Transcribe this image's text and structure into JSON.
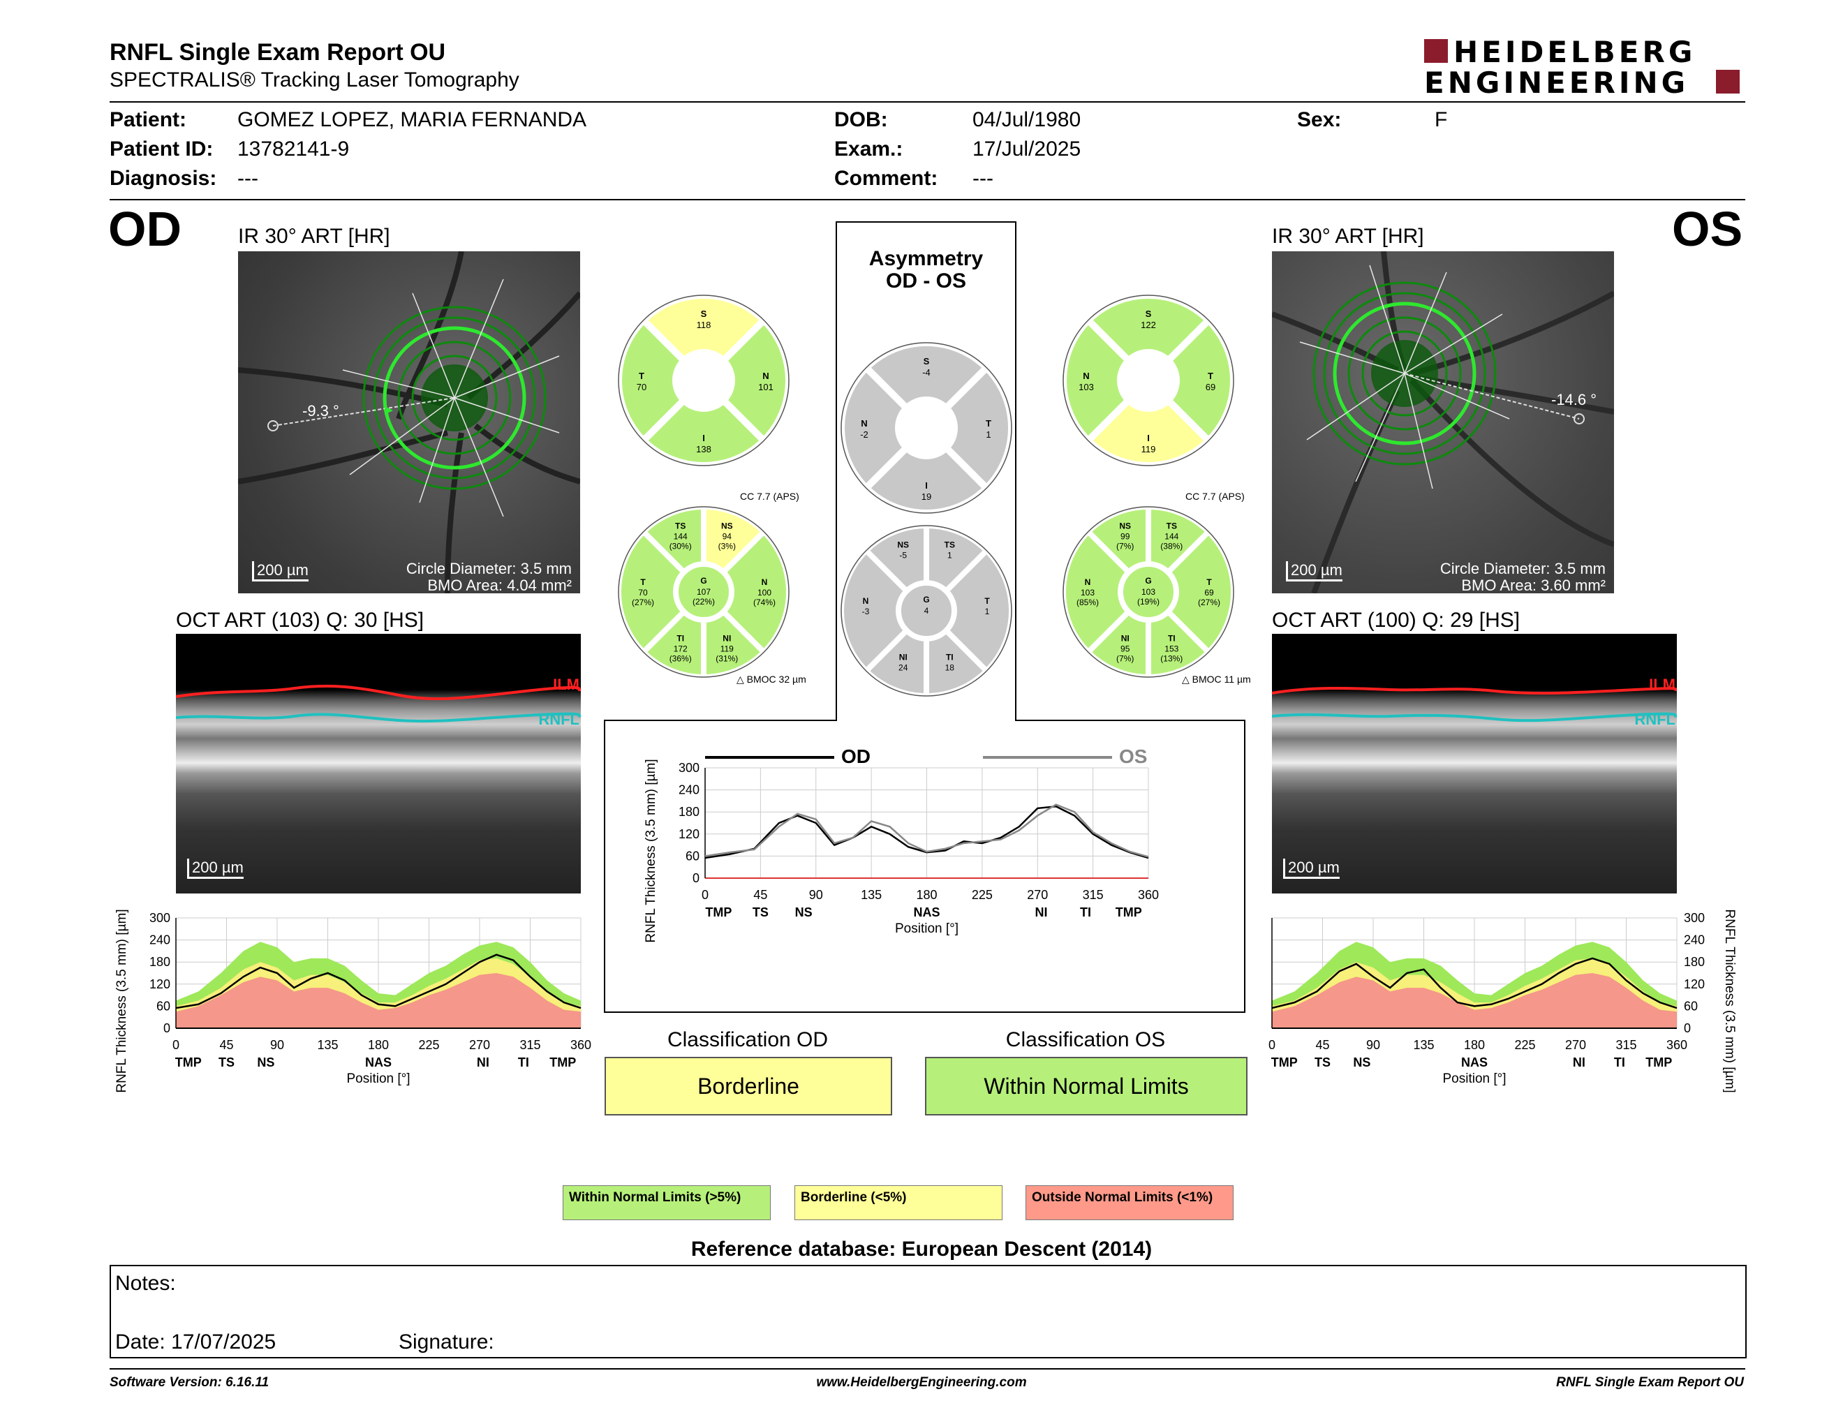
{
  "header": {
    "title": "RNFL Single Exam Report OU",
    "subtitle": "SPECTRALIS® Tracking Laser Tomography",
    "logo_line1": "HEIDELBERG",
    "logo_line2": "ENGINEERING"
  },
  "patient": {
    "patient_label": "Patient:",
    "patient_value": "GOMEZ LOPEZ, MARIA FERNANDA",
    "id_label": "Patient ID:",
    "id_value": "13782141-9",
    "diag_label": "Diagnosis:",
    "diag_value": "---",
    "dob_label": "DOB:",
    "dob_value": "04/Jul/1980",
    "exam_label": "Exam.:",
    "exam_value": "17/Jul/2025",
    "comment_label": "Comment:",
    "comment_value": "---",
    "sex_label": "Sex:",
    "sex_value": "F"
  },
  "od": {
    "eye": "OD",
    "ir_title": "IR 30° ART [HR]",
    "angle": "-9.3 °",
    "scale": "200 µm",
    "circle_diameter": "Circle Diameter: 3.5 mm",
    "bmo_area": "BMO Area: 4.04 mm²",
    "oct_title": "OCT ART (103) Q: 30 [HS]",
    "ilm": "ILM",
    "rnfl": "RNFL",
    "cc": "CC 7.7 (APS)",
    "bmoc": "BMOC 32 µm"
  },
  "os": {
    "eye": "OS",
    "ir_title": "IR 30° ART [HR]",
    "angle": "-14.6 °",
    "scale": "200 µm",
    "circle_diameter": "Circle Diameter: 3.5 mm",
    "bmo_area": "BMO Area: 3.60 mm²",
    "oct_title": "OCT ART (100) Q: 29 [HS]",
    "ilm": "ILM",
    "rnfl": "RNFL",
    "cc": "CC 7.7 (APS)",
    "bmoc": "BMOC 11 µm"
  },
  "asymmetry": {
    "title1": "Asymmetry",
    "title2": "OD - OS",
    "legend_od": "OD",
    "legend_os": "OS"
  },
  "sectors": {
    "od_quad": {
      "S": "118",
      "N": "101",
      "I": "138",
      "T": "70"
    },
    "os_quad": {
      "S": "122",
      "N": "103",
      "I": "119",
      "T": "69"
    },
    "asym_quad": {
      "S": "-4",
      "N": "-2",
      "I": "19",
      "T": "1"
    },
    "od_six": {
      "TS": [
        "144",
        "(30%)"
      ],
      "NS": [
        "94",
        "(3%)"
      ],
      "T": [
        "70",
        "(27%)"
      ],
      "G": [
        "107",
        "(22%)"
      ],
      "N": [
        "100",
        "(74%)"
      ],
      "TI": [
        "172",
        "(36%)"
      ],
      "NI": [
        "119",
        "(31%)"
      ]
    },
    "os_six": {
      "NS": [
        "99",
        "(7%)"
      ],
      "TS": [
        "144",
        "(38%)"
      ],
      "N": [
        "103",
        "(85%)"
      ],
      "G": [
        "103",
        "(19%)"
      ],
      "T": [
        "69",
        "(27%)"
      ],
      "NI": [
        "95",
        "(7%)"
      ],
      "TI": [
        "153",
        "(13%)"
      ]
    },
    "asym_six": {
      "NS": "-5",
      "TS": "1",
      "N": "-3",
      "G": "4",
      "T": "1",
      "NI": "24",
      "TI": "18"
    }
  },
  "classification": {
    "od_label": "Classification OD",
    "od_value": "Borderline",
    "os_label": "Classification OS",
    "os_value": "Within Normal Limits"
  },
  "legend": {
    "wnl": "Within Normal Limits (>5%)",
    "bl": "Borderline (<5%)",
    "onl": "Outside Normal Limits (<1%)"
  },
  "reference": "Reference database: European Descent (2014)",
  "notes": {
    "notes_label": "Notes:",
    "date_label": "Date: 17/07/2025",
    "signature_label": "Signature:"
  },
  "footer": {
    "version": "Software Version: 6.16.11",
    "website": "www.HeidelbergEngineering.com",
    "report": "RNFL Single Exam Report OU"
  },
  "colors": {
    "wnl": "#b6f07a",
    "borderline": "#ffff99",
    "onl": "#ff9a8a",
    "gray": "#c8c8c8",
    "brand": "#8b1c2c"
  },
  "chart_data": [
    {
      "type": "line",
      "id": "od_profile",
      "ylabel": "RNFL Thickness (3.5 mm) [µm]",
      "xlabel": "Position [°]",
      "xticks": [
        0,
        45,
        90,
        135,
        180,
        225,
        270,
        315,
        360
      ],
      "yticks": [
        0,
        60,
        120,
        180,
        240,
        300
      ],
      "sector_labels": [
        "TMP",
        "TS",
        "NS",
        "NAS",
        "NI",
        "TI",
        "TMP"
      ],
      "xlim": [
        0,
        360
      ],
      "ylim": [
        0,
        300
      ],
      "x": [
        0,
        20,
        40,
        60,
        75,
        90,
        105,
        120,
        135,
        150,
        165,
        180,
        195,
        210,
        225,
        240,
        255,
        270,
        285,
        300,
        315,
        330,
        345,
        360
      ],
      "series": [
        {
          "values": [
            55,
            65,
            95,
            140,
            165,
            150,
            110,
            135,
            150,
            130,
            90,
            65,
            60,
            80,
            100,
            120,
            150,
            180,
            200,
            185,
            140,
            100,
            70,
            55
          ]
        }
      ],
      "band_green_upper": [
        75,
        100,
        150,
        210,
        235,
        220,
        180,
        190,
        190,
        170,
        130,
        95,
        90,
        120,
        150,
        170,
        200,
        225,
        235,
        220,
        180,
        130,
        95,
        75
      ],
      "band_yellow_upper": [
        60,
        75,
        110,
        160,
        180,
        165,
        130,
        145,
        145,
        125,
        95,
        70,
        70,
        90,
        115,
        135,
        160,
        185,
        190,
        175,
        140,
        100,
        70,
        60
      ],
      "band_red_upper": [
        45,
        60,
        90,
        125,
        140,
        130,
        100,
        110,
        110,
        95,
        70,
        50,
        55,
        70,
        90,
        105,
        125,
        145,
        150,
        140,
        110,
        75,
        50,
        45
      ]
    },
    {
      "type": "line",
      "id": "asym_profile",
      "ylabel": "RNFL Thickness (3.5 mm) [µm]",
      "xlabel": "Position [°]",
      "xticks": [
        0,
        45,
        90,
        135,
        180,
        225,
        270,
        315,
        360
      ],
      "yticks": [
        0,
        60,
        120,
        180,
        240,
        300
      ],
      "sector_labels": [
        "TMP",
        "TS",
        "NS",
        "NAS",
        "NI",
        "TI",
        "TMP"
      ],
      "xlim": [
        0,
        360
      ],
      "ylim": [
        0,
        300
      ],
      "x": [
        0,
        20,
        40,
        60,
        75,
        90,
        105,
        120,
        135,
        150,
        165,
        180,
        195,
        210,
        225,
        240,
        255,
        270,
        285,
        300,
        315,
        330,
        345,
        360
      ],
      "series": [
        {
          "name": "OD",
          "values": [
            55,
            65,
            80,
            150,
            170,
            150,
            90,
            110,
            140,
            120,
            85,
            70,
            75,
            100,
            95,
            110,
            140,
            190,
            195,
            170,
            120,
            90,
            70,
            55
          ]
        },
        {
          "name": "OS",
          "values": [
            60,
            70,
            78,
            140,
            175,
            160,
            95,
            110,
            155,
            140,
            95,
            72,
            80,
            95,
            100,
            105,
            130,
            170,
            200,
            180,
            125,
            95,
            72,
            58
          ]
        }
      ]
    },
    {
      "type": "line",
      "id": "os_profile",
      "ylabel": "RNFL Thickness (3.5 mm) [µm]",
      "xlabel": "Position [°]",
      "xticks": [
        0,
        45,
        90,
        135,
        180,
        225,
        270,
        315,
        360
      ],
      "yticks": [
        0,
        60,
        120,
        180,
        240,
        300
      ],
      "sector_labels": [
        "TMP",
        "TS",
        "NS",
        "NAS",
        "NI",
        "TI",
        "TMP"
      ],
      "xlim": [
        0,
        360
      ],
      "ylim": [
        0,
        300
      ],
      "x": [
        0,
        20,
        40,
        60,
        75,
        90,
        105,
        120,
        135,
        150,
        165,
        180,
        195,
        210,
        225,
        240,
        255,
        270,
        285,
        300,
        315,
        330,
        345,
        360
      ],
      "series": [
        {
          "values": [
            55,
            70,
            100,
            155,
            175,
            140,
            110,
            150,
            160,
            110,
            70,
            60,
            65,
            80,
            100,
            120,
            150,
            175,
            190,
            175,
            130,
            95,
            70,
            55
          ]
        }
      ],
      "band_green_upper": [
        75,
        100,
        150,
        210,
        235,
        220,
        180,
        190,
        190,
        170,
        130,
        95,
        90,
        120,
        150,
        170,
        200,
        225,
        235,
        220,
        180,
        130,
        95,
        75
      ],
      "band_yellow_upper": [
        60,
        75,
        110,
        160,
        180,
        165,
        130,
        145,
        145,
        125,
        95,
        70,
        70,
        90,
        115,
        135,
        160,
        185,
        190,
        175,
        140,
        100,
        70,
        60
      ],
      "band_red_upper": [
        45,
        60,
        90,
        125,
        140,
        130,
        100,
        110,
        110,
        95,
        70,
        50,
        55,
        70,
        90,
        105,
        125,
        145,
        150,
        140,
        110,
        75,
        50,
        45
      ]
    }
  ]
}
